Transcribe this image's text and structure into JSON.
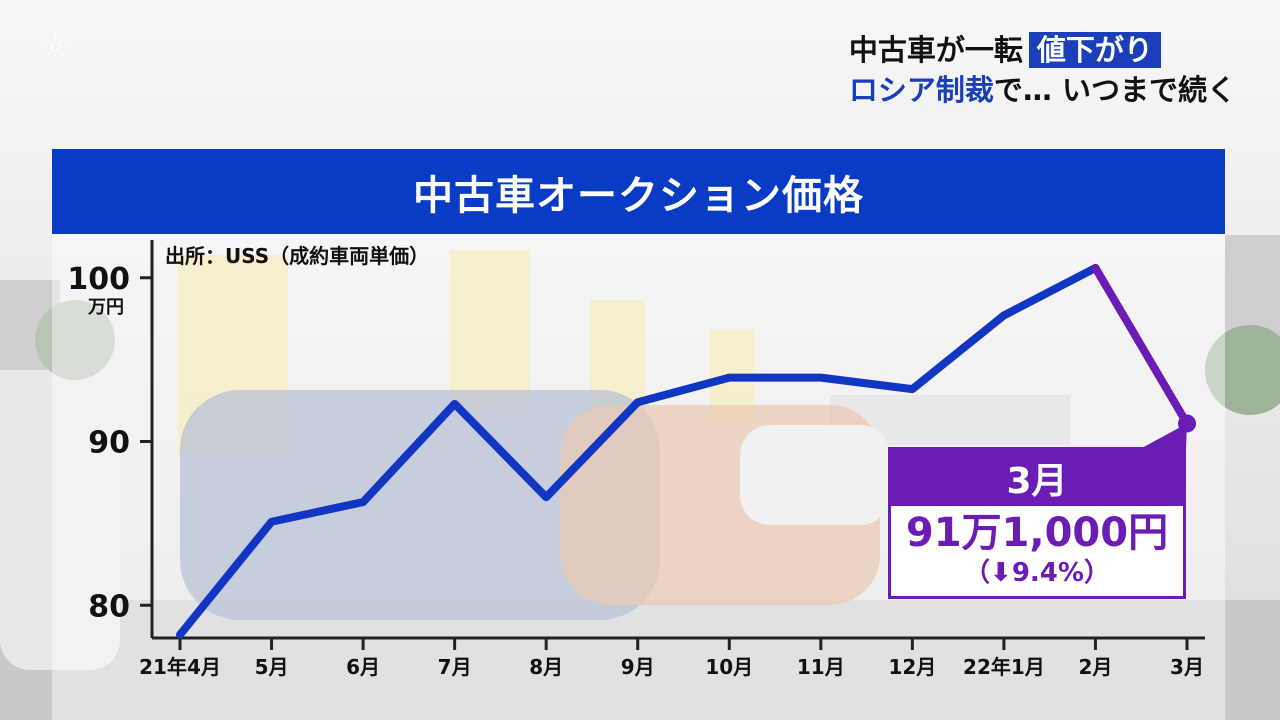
{
  "headline": {
    "line1_prefix": "中古車が一転",
    "line1_highlight": "値下がり",
    "line2_blue": "ロシア制裁",
    "line2_rest": "で… いつまで続く"
  },
  "chart_title": "中古車オークション価格",
  "source_note": "出所：USS（成約車両単価）",
  "colors": {
    "title_bar": "#0a3bc4",
    "line_main": "#1236c4",
    "line_last": "#6a1cb4",
    "callout": "#6a1cb4"
  },
  "callout": {
    "month": "3月",
    "value": "91万1,000円",
    "change": "（⬇9.4%）"
  },
  "chart_data": {
    "type": "line",
    "title": "中古車オークション価格",
    "ylabel": "万円",
    "ylim": [
      78,
      102
    ],
    "yticks": [
      {
        "value": 100,
        "label": "100"
      },
      {
        "value": 90,
        "label": "90"
      },
      {
        "value": 80,
        "label": "80"
      }
    ],
    "y_unit_label": "万円",
    "categories": [
      "21年4月",
      "5月",
      "6月",
      "7月",
      "8月",
      "9月",
      "10月",
      "11月",
      "12月",
      "22年1月",
      "2月",
      "3月"
    ],
    "values": [
      78.2,
      85.1,
      86.3,
      92.3,
      86.6,
      92.4,
      93.9,
      93.9,
      93.2,
      97.7,
      100.6,
      91.1
    ],
    "grid": false,
    "highlight_last_segment": true
  }
}
